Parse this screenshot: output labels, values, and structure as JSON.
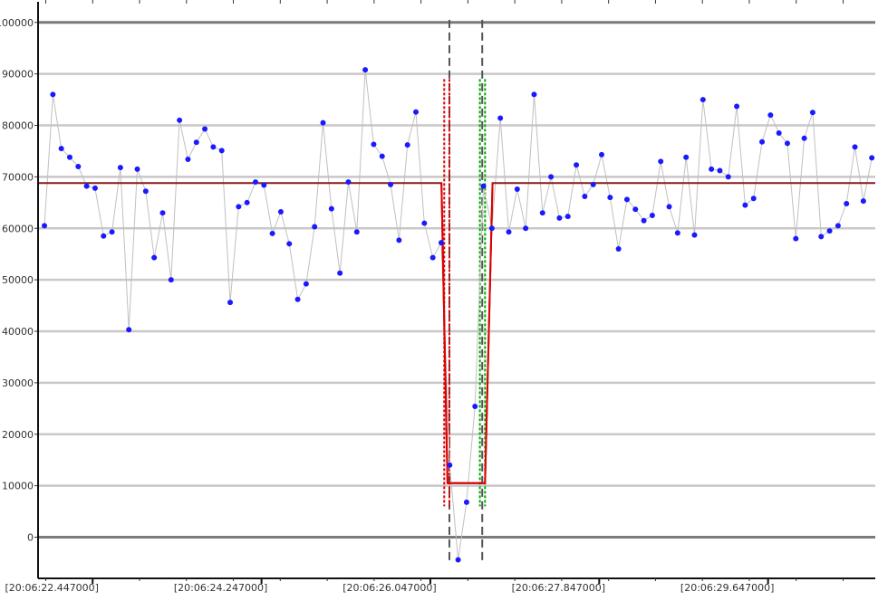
{
  "chart_data": {
    "type": "line",
    "title": "",
    "xlabel": "",
    "ylabel": "",
    "ylim": [
      -8000,
      104000
    ],
    "grid": true,
    "y_ticks": [
      0,
      10000,
      20000,
      30000,
      40000,
      50000,
      60000,
      70000,
      80000,
      90000,
      100000
    ],
    "y_tick_labels": [
      "0",
      "10000",
      "20000",
      "30000",
      "40000",
      "50000",
      "60000",
      "70000",
      "80000",
      "90000",
      "100000"
    ],
    "x_tick_labels": [
      "[20:06:22.447000]",
      "[20:06:24.247000]",
      "[20:06:26.047000]",
      "[20:06:27.847000]",
      "[20:06:29.647000]"
    ],
    "x_tick_seconds": [
      22.447,
      24.247,
      26.047,
      27.847,
      29.647
    ],
    "xlim_seconds": [
      21.865,
      30.79
    ],
    "series": [
      {
        "role": "samples",
        "line_color": "#c0c0c0",
        "marker_color": "#1a1aff",
        "x_seconds": [
          21.933,
          22.023,
          22.113,
          22.203,
          22.293,
          22.383,
          22.473,
          22.563,
          22.653,
          22.743,
          22.833,
          22.923,
          23.013,
          23.103,
          23.193,
          23.283,
          23.373,
          23.463,
          23.553,
          23.643,
          23.733,
          23.823,
          23.913,
          24.003,
          24.093,
          24.183,
          24.273,
          24.363,
          24.453,
          24.543,
          24.633,
          24.723,
          24.813,
          24.903,
          24.993,
          25.083,
          25.173,
          25.263,
          25.353,
          25.443,
          25.533,
          25.623,
          25.713,
          25.803,
          25.893,
          25.983,
          26.073,
          26.163,
          26.253,
          26.343,
          26.433,
          26.523,
          26.613,
          26.703,
          26.793,
          26.883,
          26.973,
          27.063,
          27.153,
          27.243,
          27.333,
          27.423,
          27.513,
          27.603,
          27.693,
          27.783,
          27.873,
          27.963,
          28.053,
          28.143,
          28.233,
          28.323,
          28.413,
          28.503,
          28.593,
          28.683,
          28.773,
          28.863,
          28.953,
          29.043,
          29.133,
          29.223,
          29.313,
          29.403,
          29.493,
          29.583,
          29.673,
          29.763,
          29.853,
          29.943,
          30.033,
          30.123,
          30.213,
          30.303,
          30.393,
          30.483,
          30.573,
          30.663,
          30.753
        ],
        "values": [
          60500,
          86000,
          75500,
          73800,
          72000,
          68200,
          67800,
          58500,
          59300,
          71800,
          40300,
          71500,
          67200,
          54300,
          63000,
          50000,
          81000,
          73400,
          76700,
          79300,
          75800,
          75100,
          45600,
          64200,
          65000,
          69000,
          68400,
          59000,
          63200,
          57000,
          46200,
          49200,
          60300,
          80500,
          63800,
          51300,
          69000,
          59300,
          90800,
          76300,
          74000,
          68500,
          57700,
          76200,
          82600,
          61000,
          54300,
          57200,
          14000,
          -4400,
          6800,
          25400,
          68200,
          60000,
          81400,
          59300,
          67600,
          60000,
          86000,
          63000,
          70000,
          62000,
          62300,
          72300,
          66200,
          68500,
          74300,
          66000,
          56000,
          65600,
          63700,
          61500,
          62500,
          73000,
          64200,
          59100,
          73800,
          58700,
          85000,
          71500,
          71200,
          70000,
          83700,
          64500,
          65800,
          76800,
          82000,
          78500,
          76500,
          58000,
          77500,
          82500,
          58400,
          59500,
          60500,
          64800,
          75800,
          65300,
          73700
        ]
      },
      {
        "role": "level",
        "line_color": "#8b1a1a",
        "x_seconds": [
          21.865,
          26.165,
          26.23,
          26.63,
          26.71,
          30.79
        ],
        "values": [
          68800,
          68800,
          10500,
          10500,
          68800,
          68800
        ]
      },
      {
        "role": "transition",
        "line_color": "#e00000",
        "x_seconds": [
          26.165,
          26.23,
          26.63,
          26.71
        ],
        "values": [
          68800,
          10500,
          10500,
          68800
        ]
      }
    ],
    "markers": [
      {
        "role": "boundary",
        "color": "#555555",
        "style": "dashed",
        "x_seconds": 26.25,
        "y_range": [
          -4500,
          100500
        ]
      },
      {
        "role": "boundary",
        "color": "#555555",
        "style": "dashed",
        "x_seconds": 26.6,
        "y_range": [
          -4500,
          100500
        ]
      },
      {
        "role": "window",
        "color": "#e00000",
        "style": "dotted",
        "x_seconds": 26.195,
        "y_range": [
          6000,
          89000
        ]
      },
      {
        "role": "window",
        "color": "#e00000",
        "style": "dotted",
        "x_seconds": 26.25,
        "y_range": [
          6000,
          89000
        ]
      },
      {
        "role": "window",
        "color": "#00aa00",
        "style": "dotted",
        "x_seconds": 26.575,
        "y_range": [
          6000,
          89000
        ]
      },
      {
        "role": "window",
        "color": "#00aa00",
        "style": "dotted",
        "x_seconds": 26.63,
        "y_range": [
          6000,
          89000
        ]
      }
    ]
  }
}
